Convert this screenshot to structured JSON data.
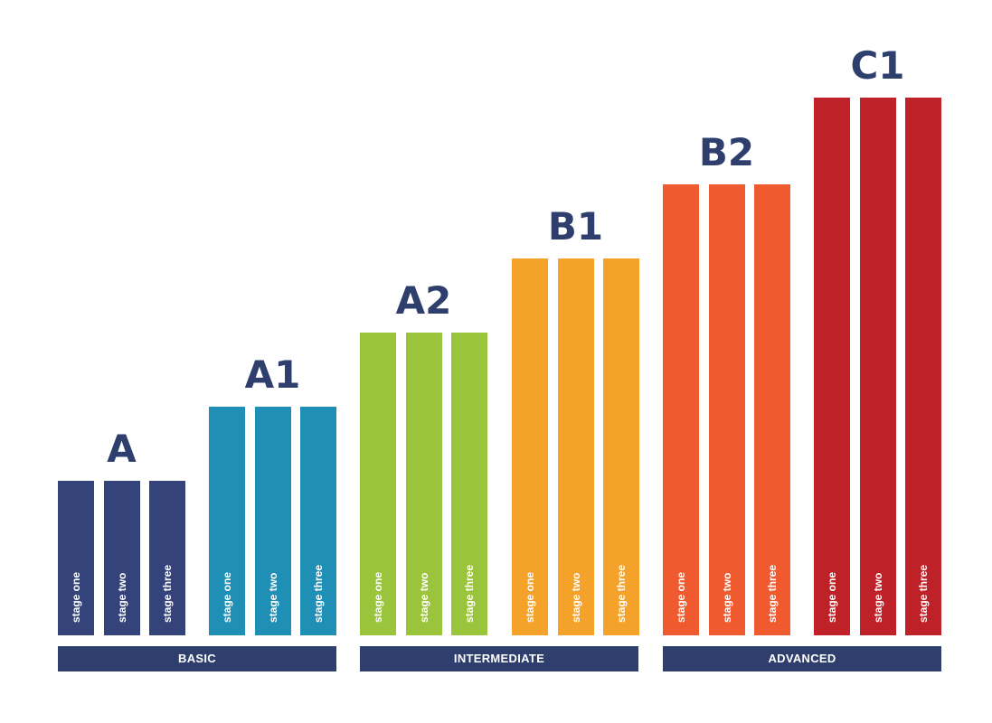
{
  "levels": [
    {
      "title": "A",
      "color": "#34447a",
      "stages": [
        "stage one",
        "stage two",
        "stage three"
      ]
    },
    {
      "title": "A1",
      "color": "#1f8fb5",
      "stages": [
        "stage one",
        "stage two",
        "stage three"
      ]
    },
    {
      "title": "A2",
      "color": "#99c43c",
      "stages": [
        "stage one",
        "stage two",
        "stage three"
      ]
    },
    {
      "title": "B1",
      "color": "#f5a22b",
      "stages": [
        "stage one",
        "stage two",
        "stage three"
      ]
    },
    {
      "title": "B2",
      "color": "#ef5b2e",
      "stages": [
        "stage one",
        "stage two",
        "stage three"
      ]
    },
    {
      "title": "C1",
      "color": "#be2127",
      "stages": [
        "stage one",
        "stage two",
        "stage three"
      ]
    }
  ],
  "groups": [
    {
      "label": "BASIC"
    },
    {
      "label": "INTERMEDIATE"
    },
    {
      "label": "ADVANCED"
    }
  ]
}
